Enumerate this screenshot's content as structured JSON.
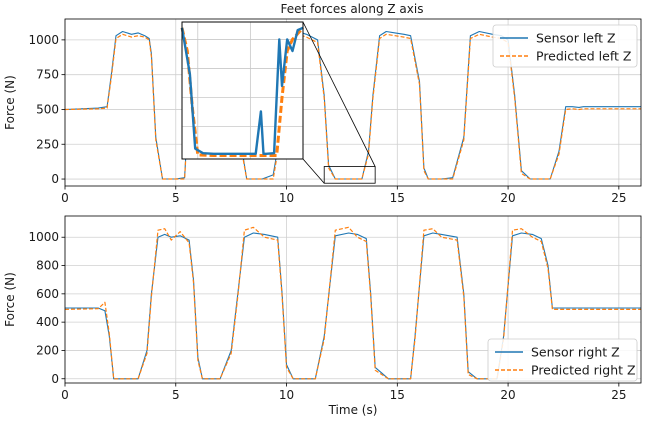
{
  "chart_data": [
    {
      "type": "line",
      "title": "Feet forces along Z axis",
      "xlabel": "",
      "ylabel": "Force (N)",
      "xlim": [
        0,
        26
      ],
      "ylim": [
        -50,
        1150
      ],
      "xticks": [
        "0",
        "5",
        "10",
        "15",
        "20",
        "25"
      ],
      "xtick_values": [
        0,
        5,
        10,
        15,
        20,
        25
      ],
      "yticks": [
        "0",
        "250",
        "500",
        "750",
        "1000"
      ],
      "ytick_values": [
        0,
        250,
        500,
        750,
        1000
      ],
      "grid": true,
      "legend_position": "top-right",
      "series": [
        {
          "name": "Sensor left Z",
          "color": "#1f77b4",
          "style": "solid",
          "x": [
            0,
            1.5,
            1.9,
            2.1,
            2.3,
            2.6,
            3.0,
            3.3,
            3.6,
            3.8,
            3.9,
            4.1,
            4.4,
            5.0,
            5.4,
            5.6,
            6.0,
            6.3,
            6.7,
            7.0,
            7.5,
            7.8,
            8.0,
            8.2,
            8.9,
            9.4,
            9.9,
            10.2,
            10.5,
            10.9,
            11.4,
            11.7,
            11.9,
            12.2,
            12.9,
            13.4,
            13.7,
            13.9,
            14.2,
            14.5,
            14.9,
            15.3,
            15.6,
            16.0,
            16.2,
            16.4,
            17.0,
            17.5,
            18.0,
            18.3,
            18.7,
            19.3,
            19.7,
            20.0,
            20.3,
            20.6,
            21.0,
            21.4,
            21.9,
            22.3,
            22.6,
            22.9,
            23.2,
            23.4,
            23.7,
            26.0
          ],
          "y": [
            500,
            510,
            520,
            760,
            1030,
            1060,
            1040,
            1050,
            1030,
            1010,
            900,
            300,
            0,
            0,
            10,
            600,
            1020,
            1050,
            1040,
            1050,
            1010,
            800,
            200,
            0,
            0,
            30,
            500,
            1020,
            1060,
            1040,
            1000,
            600,
            100,
            0,
            0,
            0,
            200,
            600,
            1030,
            1060,
            1050,
            1040,
            1030,
            700,
            80,
            0,
            0,
            10,
            300,
            1030,
            1060,
            1040,
            1030,
            1000,
            600,
            60,
            0,
            0,
            0,
            200,
            520,
            520,
            515,
            520,
            520,
            520
          ]
        },
        {
          "name": "Predicted left Z",
          "color": "#ff7f0e",
          "style": "dashed",
          "x": [
            0,
            1.5,
            1.9,
            2.1,
            2.3,
            2.6,
            3.0,
            3.3,
            3.6,
            3.8,
            3.9,
            4.1,
            4.4,
            5.0,
            5.4,
            5.6,
            6.0,
            6.3,
            6.7,
            7.0,
            7.5,
            7.8,
            8.0,
            8.2,
            8.9,
            9.4,
            9.9,
            10.2,
            10.5,
            10.9,
            11.4,
            11.7,
            11.9,
            12.2,
            12.9,
            13.4,
            13.7,
            13.9,
            14.2,
            14.5,
            14.9,
            15.3,
            15.6,
            16.0,
            16.2,
            16.4,
            17.0,
            17.5,
            18.0,
            18.3,
            18.7,
            19.3,
            19.7,
            20.0,
            20.3,
            20.6,
            21.0,
            21.4,
            21.9,
            22.3,
            22.6,
            22.9,
            23.2,
            23.4,
            23.7,
            26.0
          ],
          "y": [
            500,
            505,
            510,
            740,
            1010,
            1040,
            1020,
            1030,
            1020,
            1000,
            880,
            280,
            0,
            0,
            0,
            580,
            1000,
            1030,
            1020,
            1030,
            990,
            780,
            180,
            0,
            0,
            0,
            480,
            1000,
            1040,
            1020,
            980,
            580,
            80,
            0,
            0,
            0,
            180,
            580,
            1010,
            1040,
            1030,
            1020,
            1010,
            680,
            60,
            0,
            0,
            0,
            280,
            1010,
            1040,
            1020,
            1010,
            980,
            580,
            40,
            0,
            0,
            0,
            180,
            500,
            505,
            500,
            505,
            505,
            505
          ]
        }
      ],
      "inset": {
        "xlim": [
          11.7,
          14.0
        ],
        "ylim": [
          -30,
          1150
        ],
        "series": [
          {
            "name": "Sensor left Z",
            "x": [
              11.7,
              11.85,
              11.95,
              12.1,
              12.3,
              12.6,
              12.9,
              13.1,
              13.2,
              13.25,
              13.3,
              13.45,
              13.55,
              13.6,
              13.7,
              13.8,
              13.9,
              14.0
            ],
            "y": [
              1100,
              700,
              60,
              20,
              15,
              15,
              15,
              15,
              380,
              15,
              15,
              20,
              1000,
              600,
              1000,
              900,
              1080,
              1100
            ]
          },
          {
            "name": "Predicted left Z",
            "x": [
              11.7,
              11.8,
              11.9,
              12.0,
              12.3,
              12.6,
              12.9,
              13.2,
              13.5,
              13.6,
              13.7,
              13.8,
              14.0
            ],
            "y": [
              1100,
              900,
              400,
              5,
              0,
              0,
              0,
              0,
              0,
              500,
              900,
              1000,
              1100
            ]
          }
        ]
      }
    },
    {
      "type": "line",
      "title": "",
      "xlabel": "Time (s)",
      "ylabel": "Force (N)",
      "xlim": [
        0,
        26
      ],
      "ylim": [
        -30,
        1150
      ],
      "xticks": [
        "0",
        "5",
        "10",
        "15",
        "20",
        "25"
      ],
      "xtick_values": [
        0,
        5,
        10,
        15,
        20,
        25
      ],
      "yticks": [
        "0",
        "200",
        "400",
        "600",
        "800",
        "1000"
      ],
      "ytick_values": [
        0,
        200,
        400,
        600,
        800,
        1000
      ],
      "grid": true,
      "legend_position": "bottom-right",
      "series": [
        {
          "name": "Sensor right Z",
          "color": "#1f77b4",
          "style": "solid",
          "x": [
            0,
            1.5,
            1.8,
            2.0,
            2.2,
            2.6,
            3.3,
            3.7,
            3.9,
            4.2,
            4.5,
            4.8,
            5.2,
            5.6,
            5.8,
            6.0,
            6.2,
            6.5,
            7.0,
            7.5,
            7.8,
            8.1,
            8.5,
            9.0,
            9.6,
            9.8,
            10.0,
            10.3,
            10.9,
            11.3,
            11.7,
            12.2,
            12.8,
            13.2,
            13.6,
            13.8,
            14.0,
            14.6,
            15.3,
            15.6,
            15.8,
            16.2,
            16.6,
            17.0,
            17.7,
            18.0,
            18.2,
            18.6,
            19.1,
            19.5,
            19.8,
            20.2,
            20.6,
            21.1,
            21.5,
            21.8,
            22.0,
            22.3,
            26.0
          ],
          "y": [
            500,
            500,
            480,
            300,
            0,
            0,
            0,
            200,
            600,
            1000,
            1020,
            1000,
            1010,
            980,
            700,
            150,
            0,
            0,
            0,
            200,
            600,
            1000,
            1030,
            1020,
            1000,
            600,
            100,
            0,
            0,
            0,
            300,
            1010,
            1030,
            1020,
            990,
            600,
            80,
            0,
            0,
            0,
            300,
            1010,
            1030,
            1020,
            1000,
            600,
            50,
            0,
            0,
            0,
            300,
            1010,
            1030,
            1020,
            990,
            800,
            500,
            500,
            500
          ]
        },
        {
          "name": "Predicted right Z",
          "color": "#ff7f0e",
          "style": "dashed",
          "x": [
            0,
            1.5,
            1.8,
            2.0,
            2.2,
            2.6,
            3.3,
            3.7,
            3.9,
            4.2,
            4.5,
            4.8,
            5.2,
            5.6,
            5.8,
            6.0,
            6.2,
            6.5,
            7.0,
            7.5,
            7.8,
            8.1,
            8.5,
            9.0,
            9.6,
            9.8,
            10.0,
            10.3,
            10.9,
            11.3,
            11.7,
            12.2,
            12.8,
            13.2,
            13.6,
            13.8,
            14.0,
            14.6,
            15.3,
            15.6,
            15.8,
            16.2,
            16.6,
            17.0,
            17.7,
            18.0,
            18.2,
            18.6,
            19.1,
            19.5,
            19.8,
            20.2,
            20.6,
            21.1,
            21.5,
            21.8,
            22.0,
            22.3,
            26.0
          ],
          "y": [
            490,
            495,
            540,
            320,
            0,
            0,
            0,
            180,
            580,
            1050,
            1060,
            980,
            1040,
            960,
            680,
            130,
            0,
            0,
            0,
            180,
            580,
            1050,
            1070,
            1000,
            980,
            580,
            80,
            0,
            0,
            0,
            280,
            1050,
            1070,
            1000,
            970,
            580,
            60,
            0,
            0,
            0,
            280,
            1050,
            1060,
            1000,
            980,
            580,
            30,
            0,
            0,
            0,
            280,
            1050,
            1060,
            1000,
            970,
            780,
            490,
            490,
            490
          ]
        }
      ]
    }
  ]
}
